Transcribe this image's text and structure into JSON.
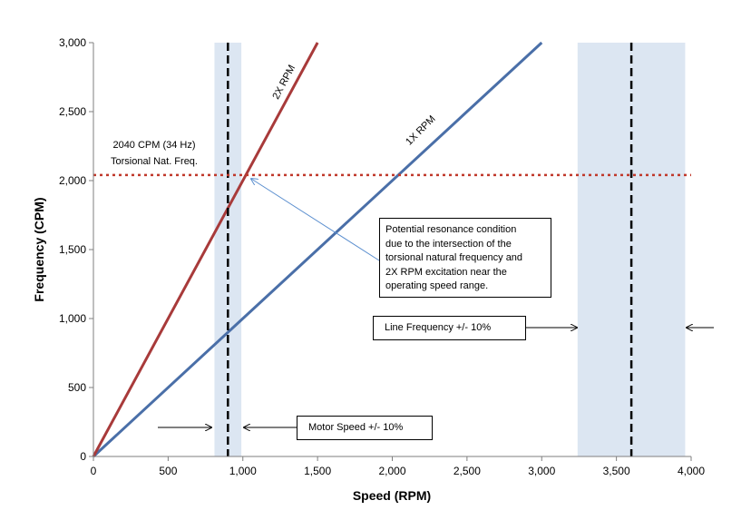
{
  "chart_data": {
    "type": "line",
    "xlabel": "Speed (RPM)",
    "ylabel": "Frequency (CPM)",
    "xlim": [
      0,
      4000
    ],
    "ylim": [
      0,
      3000
    ],
    "x_ticks": [
      "0",
      "500",
      "1,000",
      "1,500",
      "2,000",
      "2,500",
      "3,000",
      "3,500",
      "4,000"
    ],
    "y_ticks": [
      "0",
      "500",
      "1,000",
      "1,500",
      "2,000",
      "2,500",
      "3,000"
    ],
    "series": [
      {
        "name": "1X RPM",
        "color": "#4a6fa8",
        "x": [
          0,
          3000
        ],
        "y": [
          0,
          3000
        ]
      },
      {
        "name": "2X RPM",
        "color": "#a83a3a",
        "x": [
          0,
          1500
        ],
        "y": [
          0,
          3000
        ]
      }
    ],
    "torsional_natural_frequency": {
      "value": 2040,
      "color": "#c0392b",
      "label_line1": "2040 CPM (34 Hz)",
      "label_line2": "Torsional Nat. Freq."
    },
    "bands": [
      {
        "center": 900,
        "low": 810,
        "high": 990,
        "color": "#dce6f2"
      },
      {
        "center": 3600,
        "low": 3240,
        "high": 3960,
        "color": "#dce6f2"
      }
    ],
    "annotations": {
      "resonance_lines": [
        "Potential resonance condition",
        "due to the intersection of the",
        "torsional natural frequency and",
        "2X RPM excitation near the",
        "operating speed range."
      ],
      "motor_speed": "Motor Speed +/- 10%",
      "line_frequency": "Line Frequency +/- 10%"
    }
  }
}
